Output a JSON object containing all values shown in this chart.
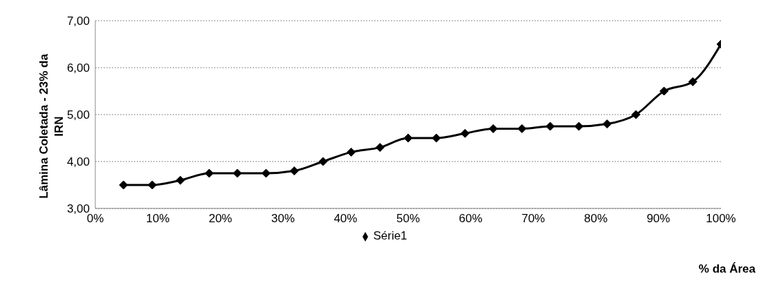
{
  "chart_data": {
    "type": "line",
    "xlabel": "% da Área",
    "ylabel": "Lâmina Coletada - 23% da IRN",
    "x": [
      4.5,
      9.1,
      13.6,
      18.2,
      22.7,
      27.3,
      31.8,
      36.4,
      40.9,
      45.5,
      50,
      54.5,
      59.1,
      63.6,
      68.2,
      72.7,
      77.3,
      81.8,
      86.4,
      90.9,
      95.5,
      100
    ],
    "series": [
      {
        "name": "Série1",
        "color": "#000000",
        "values": [
          3.5,
          3.5,
          3.6,
          3.75,
          3.75,
          3.75,
          3.8,
          4.0,
          4.2,
          4.3,
          4.5,
          4.5,
          4.6,
          4.7,
          4.7,
          4.75,
          4.75,
          4.8,
          5.0,
          5.5,
          5.7,
          6.5
        ]
      }
    ],
    "xlim": [
      0,
      100
    ],
    "xticks": [
      {
        "value": 0,
        "label": "0%"
      },
      {
        "value": 10,
        "label": "10%"
      },
      {
        "value": 20,
        "label": "20%"
      },
      {
        "value": 30,
        "label": "30%"
      },
      {
        "value": 40,
        "label": "40%"
      },
      {
        "value": 50,
        "label": "50%"
      },
      {
        "value": 60,
        "label": "60%"
      },
      {
        "value": 70,
        "label": "70%"
      },
      {
        "value": 80,
        "label": "80%"
      },
      {
        "value": 90,
        "label": "90%"
      },
      {
        "value": 100,
        "label": "100%"
      }
    ],
    "ylim": [
      3,
      7
    ],
    "yticks": [
      {
        "value": 3,
        "label": "3,00"
      },
      {
        "value": 4,
        "label": "4,00"
      },
      {
        "value": 5,
        "label": "5,00"
      },
      {
        "value": 6,
        "label": "6,00"
      },
      {
        "value": 7,
        "label": "7,00"
      }
    ],
    "grid": "y",
    "legend": "bottom",
    "marker": "diamond",
    "line_style": "solid"
  }
}
